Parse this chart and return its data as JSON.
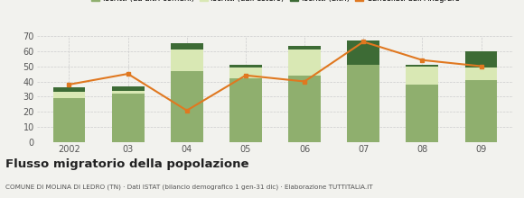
{
  "years": [
    "2002",
    "03",
    "04",
    "05",
    "06",
    "07",
    "08",
    "09"
  ],
  "iscritti_altri_comuni": [
    29,
    32,
    47,
    42,
    44,
    51,
    38,
    41
  ],
  "iscritti_estero": [
    4,
    2,
    14,
    7,
    17,
    0,
    12,
    8
  ],
  "iscritti_altri": [
    3,
    3,
    4,
    2,
    2,
    16,
    1,
    11
  ],
  "cancellati": [
    38,
    45,
    21,
    44,
    40,
    66,
    54,
    50
  ],
  "color_altri_comuni": "#8faf6e",
  "color_estero": "#d9e8b4",
  "color_iscritti_altri": "#3d6b35",
  "color_cancellati": "#e07820",
  "color_bg": "#f2f2ee",
  "color_grid": "#cccccc",
  "ylim": [
    0,
    70
  ],
  "yticks": [
    0,
    10,
    20,
    30,
    40,
    50,
    60,
    70
  ],
  "title": "Flusso migratorio della popolazione",
  "subtitle": "COMUNE DI MOLINA DI LEDRO (TN) · Dati ISTAT (bilancio demografico 1 gen-31 dic) · Elaborazione TUTTITALIA.IT"
}
